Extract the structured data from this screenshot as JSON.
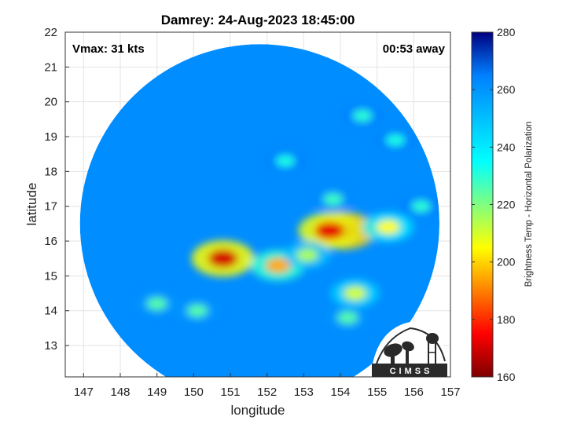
{
  "title": "Damrey: 24-Aug-2023 18:45:00",
  "annotations": {
    "vmax": "Vmax: 31 kts",
    "time_away": "00:53 away"
  },
  "logo_text": "CIMSS",
  "colorbar": {
    "label": "Brightness Temp - Horizontal Polarization",
    "min": 160,
    "max": 280,
    "ticks": [
      160,
      180,
      200,
      220,
      240,
      260,
      280
    ],
    "colormap": [
      "#7f0000",
      "#ff0000",
      "#ffff00",
      "#00ffff",
      "#0080ff",
      "#00007f"
    ]
  },
  "chart_data": {
    "type": "heatmap",
    "title": "Damrey: 24-Aug-2023 18:45:00",
    "xlabel": "longitude",
    "ylabel": "latitude",
    "xlim": [
      146.5,
      157
    ],
    "ylim": [
      12.1,
      22
    ],
    "xticks": [
      147,
      148,
      149,
      150,
      151,
      152,
      153,
      154,
      155,
      156,
      157
    ],
    "yticks": [
      13,
      14,
      15,
      16,
      17,
      18,
      19,
      20,
      21,
      22
    ],
    "grid": true,
    "swath_center": [
      151.8,
      16.5
    ],
    "swath_radius_deg": 4.9,
    "background_tb": 262,
    "features": [
      {
        "lon": 154.1,
        "lat": 16.3,
        "tb": 165
      },
      {
        "lon": 153.7,
        "lat": 16.3,
        "tb": 172
      },
      {
        "lon": 150.8,
        "lat": 15.5,
        "tb": 170
      },
      {
        "lon": 152.3,
        "lat": 15.3,
        "tb": 195
      },
      {
        "lon": 155.3,
        "lat": 16.4,
        "tb": 205
      },
      {
        "lon": 154.4,
        "lat": 14.5,
        "tb": 210
      },
      {
        "lon": 153.1,
        "lat": 15.6,
        "tb": 215
      },
      {
        "lon": 149.0,
        "lat": 14.2,
        "tb": 225
      },
      {
        "lon": 150.1,
        "lat": 14.0,
        "tb": 225
      },
      {
        "lon": 153.8,
        "lat": 17.2,
        "tb": 228
      },
      {
        "lon": 155.5,
        "lat": 18.9,
        "tb": 232
      },
      {
        "lon": 154.6,
        "lat": 19.6,
        "tb": 230
      },
      {
        "lon": 152.5,
        "lat": 18.3,
        "tb": 232
      },
      {
        "lon": 154.2,
        "lat": 13.8,
        "tb": 225
      },
      {
        "lon": 156.2,
        "lat": 17.0,
        "tb": 230
      }
    ]
  }
}
